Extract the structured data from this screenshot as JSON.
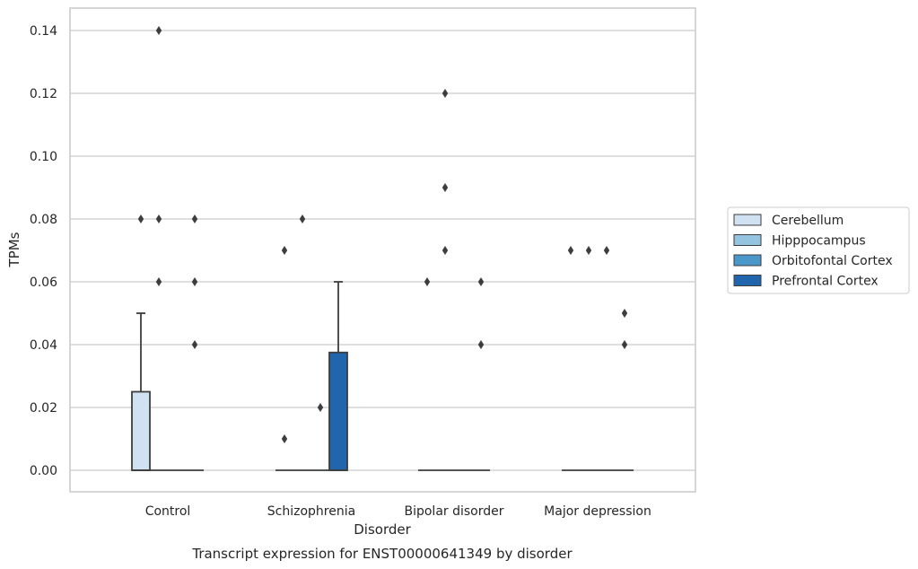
{
  "chart_data": {
    "type": "box",
    "title": "Transcript expression for ENST00000641349 by disorder",
    "xlabel": "Disorder",
    "ylabel": "TPMs",
    "ylim": [
      -0.007,
      0.147
    ],
    "y_ticks": [
      "0.00",
      "0.02",
      "0.04",
      "0.06",
      "0.08",
      "0.10",
      "0.12",
      "0.14"
    ],
    "grid": true,
    "legend_position": "right",
    "categories": [
      "Control",
      "Schizophrenia",
      "Bipolar disorder",
      "Major depression"
    ],
    "series": [
      {
        "name": "Cerebellum",
        "color": "#d0e1f2",
        "boxes": [
          {
            "q1": 0,
            "median": 0,
            "q3": 0.025,
            "whisker_low": 0,
            "whisker_high": 0.05,
            "outliers": [
              0.08
            ]
          },
          {
            "q1": 0,
            "median": 0,
            "q3": 0,
            "whisker_low": 0,
            "whisker_high": 0,
            "outliers": [
              0.01,
              0.07
            ]
          },
          {
            "q1": 0,
            "median": 0,
            "q3": 0,
            "whisker_low": 0,
            "whisker_high": 0,
            "outliers": [
              0.06
            ]
          },
          {
            "q1": 0,
            "median": 0,
            "q3": 0,
            "whisker_low": 0,
            "whisker_high": 0,
            "outliers": [
              0.07
            ]
          }
        ]
      },
      {
        "name": "Hipppocampus",
        "color": "#94c4df",
        "boxes": [
          {
            "q1": 0,
            "median": 0,
            "q3": 0,
            "whisker_low": 0,
            "whisker_high": 0,
            "outliers": [
              0.06,
              0.08,
              0.14
            ]
          },
          {
            "q1": 0,
            "median": 0,
            "q3": 0,
            "whisker_low": 0,
            "whisker_high": 0,
            "outliers": [
              0.08
            ]
          },
          {
            "q1": 0,
            "median": 0,
            "q3": 0,
            "whisker_low": 0,
            "whisker_high": 0,
            "outliers": [
              0.07,
              0.09,
              0.12
            ]
          },
          {
            "q1": 0,
            "median": 0,
            "q3": 0,
            "whisker_low": 0,
            "whisker_high": 0,
            "outliers": [
              0.07
            ]
          }
        ]
      },
      {
        "name": "Orbitofontal Cortex",
        "color": "#4a98c9",
        "boxes": [
          {
            "q1": 0,
            "median": 0,
            "q3": 0,
            "whisker_low": 0,
            "whisker_high": 0,
            "outliers": []
          },
          {
            "q1": 0,
            "median": 0,
            "q3": 0,
            "whisker_low": 0,
            "whisker_high": 0,
            "outliers": [
              0.02
            ]
          },
          {
            "q1": 0,
            "median": 0,
            "q3": 0,
            "whisker_low": 0,
            "whisker_high": 0,
            "outliers": []
          },
          {
            "q1": 0,
            "median": 0,
            "q3": 0,
            "whisker_low": 0,
            "whisker_high": 0,
            "outliers": [
              0.07
            ]
          }
        ]
      },
      {
        "name": "Prefrontal Cortex",
        "color": "#2166ac",
        "boxes": [
          {
            "q1": 0,
            "median": 0,
            "q3": 0,
            "whisker_low": 0,
            "whisker_high": 0,
            "outliers": [
              0.04,
              0.06,
              0.08
            ]
          },
          {
            "q1": 0,
            "median": 0,
            "q3": 0.0375,
            "whisker_low": 0,
            "whisker_high": 0.06,
            "outliers": []
          },
          {
            "q1": 0,
            "median": 0,
            "q3": 0,
            "whisker_low": 0,
            "whisker_high": 0,
            "outliers": [
              0.04,
              0.06
            ]
          },
          {
            "q1": 0,
            "median": 0,
            "q3": 0,
            "whisker_low": 0,
            "whisker_high": 0,
            "outliers": [
              0.04,
              0.05
            ]
          }
        ]
      }
    ]
  }
}
